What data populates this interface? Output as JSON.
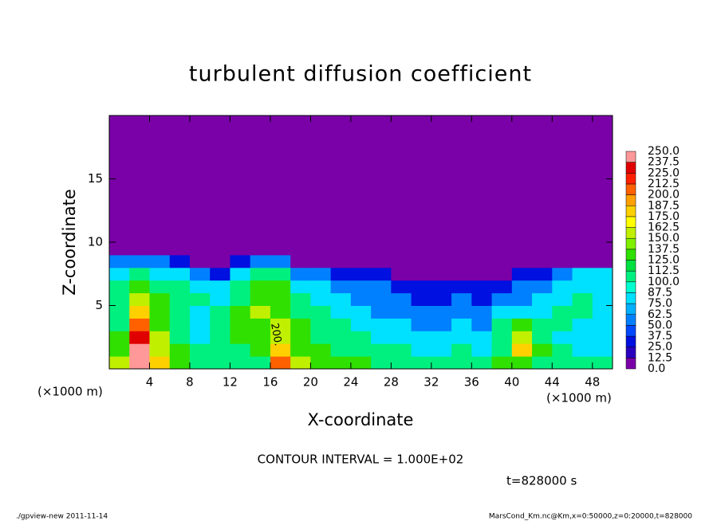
{
  "chart_data": {
    "type": "contour",
    "title": "turbulent diffusion coefficient",
    "x_label": "X-coordinate",
    "y_label": "Z-coordinate",
    "x_unit": "(×1000 m)",
    "xlim": [
      0,
      50
    ],
    "ylim": [
      0,
      20
    ],
    "xticks": [
      4,
      8,
      12,
      16,
      20,
      24,
      28,
      32,
      36,
      40,
      44,
      48
    ],
    "yticks": [
      5,
      10,
      15
    ],
    "x_edges": [
      0,
      2,
      4,
      6,
      8,
      10,
      12,
      14,
      16,
      18,
      20,
      22,
      24,
      26,
      28,
      30,
      32,
      34,
      36,
      38,
      40,
      42,
      44,
      46,
      48,
      50
    ],
    "z_edges": [
      0,
      1,
      2,
      3,
      4,
      5,
      6,
      7,
      8,
      9,
      10,
      20
    ],
    "values": [
      [
        150,
        250,
        175,
        137,
        112,
        100,
        112,
        112,
        212,
        150,
        137,
        125,
        125,
        112,
        112,
        100,
        100,
        112,
        100,
        125,
        137,
        112,
        100,
        100,
        100
      ],
      [
        137,
        250,
        162,
        125,
        100,
        100,
        112,
        125,
        175,
        137,
        125,
        112,
        112,
        100,
        100,
        87,
        87,
        100,
        87,
        112,
        175,
        125,
        100,
        87,
        87
      ],
      [
        125,
        225,
        150,
        112,
        87,
        100,
        125,
        125,
        162,
        125,
        112,
        112,
        100,
        87,
        87,
        75,
        75,
        87,
        75,
        112,
        162,
        112,
        87,
        87,
        75
      ],
      [
        112,
        200,
        137,
        100,
        87,
        112,
        137,
        137,
        150,
        125,
        112,
        100,
        87,
        75,
        75,
        62,
        62,
        75,
        62,
        100,
        125,
        100,
        100,
        87,
        87
      ],
      [
        112,
        175,
        125,
        100,
        87,
        100,
        125,
        150,
        137,
        112,
        100,
        87,
        75,
        62,
        62,
        50,
        50,
        62,
        50,
        75,
        87,
        87,
        100,
        100,
        87
      ],
      [
        100,
        150,
        125,
        112,
        100,
        87,
        112,
        137,
        137,
        100,
        87,
        75,
        62,
        62,
        50,
        37,
        37,
        50,
        37,
        50,
        62,
        75,
        87,
        100,
        87
      ],
      [
        100,
        125,
        112,
        100,
        87,
        75,
        100,
        137,
        125,
        87,
        75,
        62,
        50,
        50,
        37,
        25,
        25,
        37,
        25,
        37,
        50,
        62,
        75,
        87,
        87
      ],
      [
        87,
        100,
        87,
        75,
        62,
        37,
        75,
        112,
        100,
        62,
        50,
        37,
        25,
        25,
        12,
        12,
        12,
        12,
        12,
        12,
        25,
        37,
        50,
        75,
        75
      ],
      [
        50,
        62,
        50,
        25,
        12,
        12,
        25,
        50,
        50,
        12,
        0,
        0,
        0,
        0,
        0,
        0,
        0,
        0,
        0,
        0,
        0,
        0,
        0,
        12,
        12
      ],
      [
        12,
        0,
        0,
        0,
        0,
        0,
        0,
        0,
        0,
        0,
        0,
        0,
        0,
        0,
        0,
        0,
        0,
        0,
        0,
        0,
        0,
        0,
        0,
        0,
        0
      ],
      [
        0,
        0,
        0,
        0,
        0,
        0,
        0,
        0,
        0,
        0,
        0,
        0,
        0,
        0,
        0,
        0,
        0,
        0,
        0,
        0,
        0,
        0,
        0,
        0,
        0
      ]
    ],
    "contour_label": "200.",
    "contour_interval_text": "CONTOUR INTERVAL = 1.000E+02",
    "time_text": "t=828000 s",
    "footer_left": "./gpview-new  2011-11-14",
    "footer_right": "MarsCond_Km.nc@Km,x=0:50000,z=0:20000,t=828000",
    "colorbar": {
      "levels": [
        {
          "value": 0,
          "label": "0.0"
        },
        {
          "value": 12.5,
          "label": "12.5"
        },
        {
          "value": 25,
          "label": "25.0"
        },
        {
          "value": 37.5,
          "label": "37.5"
        },
        {
          "value": 50,
          "label": "50.0"
        },
        {
          "value": 62.5,
          "label": "62.5"
        },
        {
          "value": 75,
          "label": "75.0"
        },
        {
          "value": 87.5,
          "label": "87.5"
        },
        {
          "value": 100,
          "label": "100.0"
        },
        {
          "value": 112.5,
          "label": "112.5"
        },
        {
          "value": 125,
          "label": "125.0"
        },
        {
          "value": 137.5,
          "label": "137.5"
        },
        {
          "value": 150,
          "label": "150.0"
        },
        {
          "value": 162.5,
          "label": "162.5"
        },
        {
          "value": 175,
          "label": "175.0"
        },
        {
          "value": 187.5,
          "label": "187.5"
        },
        {
          "value": 200,
          "label": "200.0"
        },
        {
          "value": 212.5,
          "label": "212.5"
        },
        {
          "value": 225,
          "label": "225.0"
        },
        {
          "value": 237.5,
          "label": "237.5"
        },
        {
          "value": 250,
          "label": "250.0"
        }
      ],
      "colors": [
        "#7a00a8",
        "#2a00c0",
        "#0010e0",
        "#0048ff",
        "#0080ff",
        "#00b0ff",
        "#00e0ff",
        "#00ffd0",
        "#00f080",
        "#00e040",
        "#30e000",
        "#80f000",
        "#c0f000",
        "#ffff00",
        "#ffd000",
        "#ffa000",
        "#ff6000",
        "#ff2000",
        "#e00000",
        "#ff9898"
      ]
    }
  }
}
